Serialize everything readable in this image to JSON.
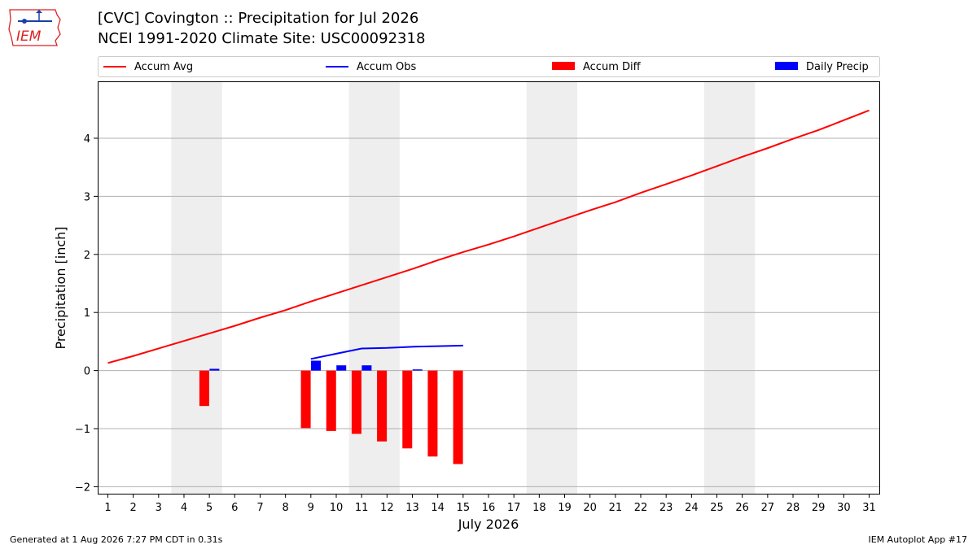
{
  "header": {
    "title_line1": "[CVC] Covington :: Precipitation for Jul 2026",
    "title_line2": "NCEI 1991-2020 Climate Site: USC00092318",
    "logo_text": "IEM"
  },
  "footer": {
    "left": "Generated at 1 Aug 2026 7:27 PM CDT in 0.31s",
    "right": "IEM Autoplot App #17"
  },
  "colors": {
    "accum_avg": "#ff0000",
    "accum_obs": "#0000ff",
    "accum_diff": "#ff0000",
    "daily_precip": "#0000ff",
    "weekend_shade": "#eeeeee",
    "grid": "#b0b0b0"
  },
  "chart_data": {
    "type": "line",
    "xlabel": "July 2026",
    "ylabel": "Precipitation [inch]",
    "xlim": [
      0.6,
      31.4
    ],
    "ylim": [
      -2.12,
      4.98
    ],
    "yticks": [
      -2,
      -1,
      0,
      1,
      2,
      3,
      4
    ],
    "x": [
      1,
      2,
      3,
      4,
      5,
      6,
      7,
      8,
      9,
      10,
      11,
      12,
      13,
      14,
      15,
      16,
      17,
      18,
      19,
      20,
      21,
      22,
      23,
      24,
      25,
      26,
      27,
      28,
      29,
      30,
      31
    ],
    "weekend_days": [
      [
        4,
        5
      ],
      [
        11,
        12
      ],
      [
        18,
        19
      ],
      [
        25,
        26
      ]
    ],
    "grid": true,
    "legend_position": "top",
    "legend": [
      "Accum Avg",
      "Accum Obs",
      "Accum Diff",
      "Daily Precip"
    ],
    "series": [
      {
        "name": "Accum Avg",
        "kind": "line",
        "x": [
          1,
          2,
          3,
          4,
          5,
          6,
          7,
          8,
          9,
          10,
          11,
          12,
          13,
          14,
          15,
          16,
          17,
          18,
          19,
          20,
          21,
          22,
          23,
          24,
          25,
          26,
          27,
          28,
          29,
          30,
          31
        ],
        "values": [
          0.13,
          0.25,
          0.38,
          0.51,
          0.64,
          0.77,
          0.91,
          1.04,
          1.19,
          1.33,
          1.47,
          1.61,
          1.75,
          1.9,
          2.04,
          2.17,
          2.31,
          2.46,
          2.61,
          2.76,
          2.9,
          3.06,
          3.21,
          3.36,
          3.52,
          3.68,
          3.83,
          3.99,
          4.14,
          4.31,
          4.48
        ]
      },
      {
        "name": "Accum Obs",
        "kind": "line",
        "x": [
          9,
          10,
          11,
          12,
          13,
          14,
          15
        ],
        "values": [
          0.2,
          0.29,
          0.38,
          0.39,
          0.41,
          0.42,
          0.43
        ]
      },
      {
        "name": "Accum Diff",
        "kind": "bar",
        "x": [
          5,
          9,
          10,
          11,
          12,
          13,
          14,
          15
        ],
        "values": [
          -0.61,
          -0.99,
          -1.04,
          -1.09,
          -1.22,
          -1.34,
          -1.48,
          -1.61
        ]
      },
      {
        "name": "Daily Precip",
        "kind": "bar",
        "x": [
          5,
          9,
          10,
          11,
          13
        ],
        "values": [
          0.03,
          0.17,
          0.09,
          0.09,
          0.02
        ]
      }
    ]
  }
}
